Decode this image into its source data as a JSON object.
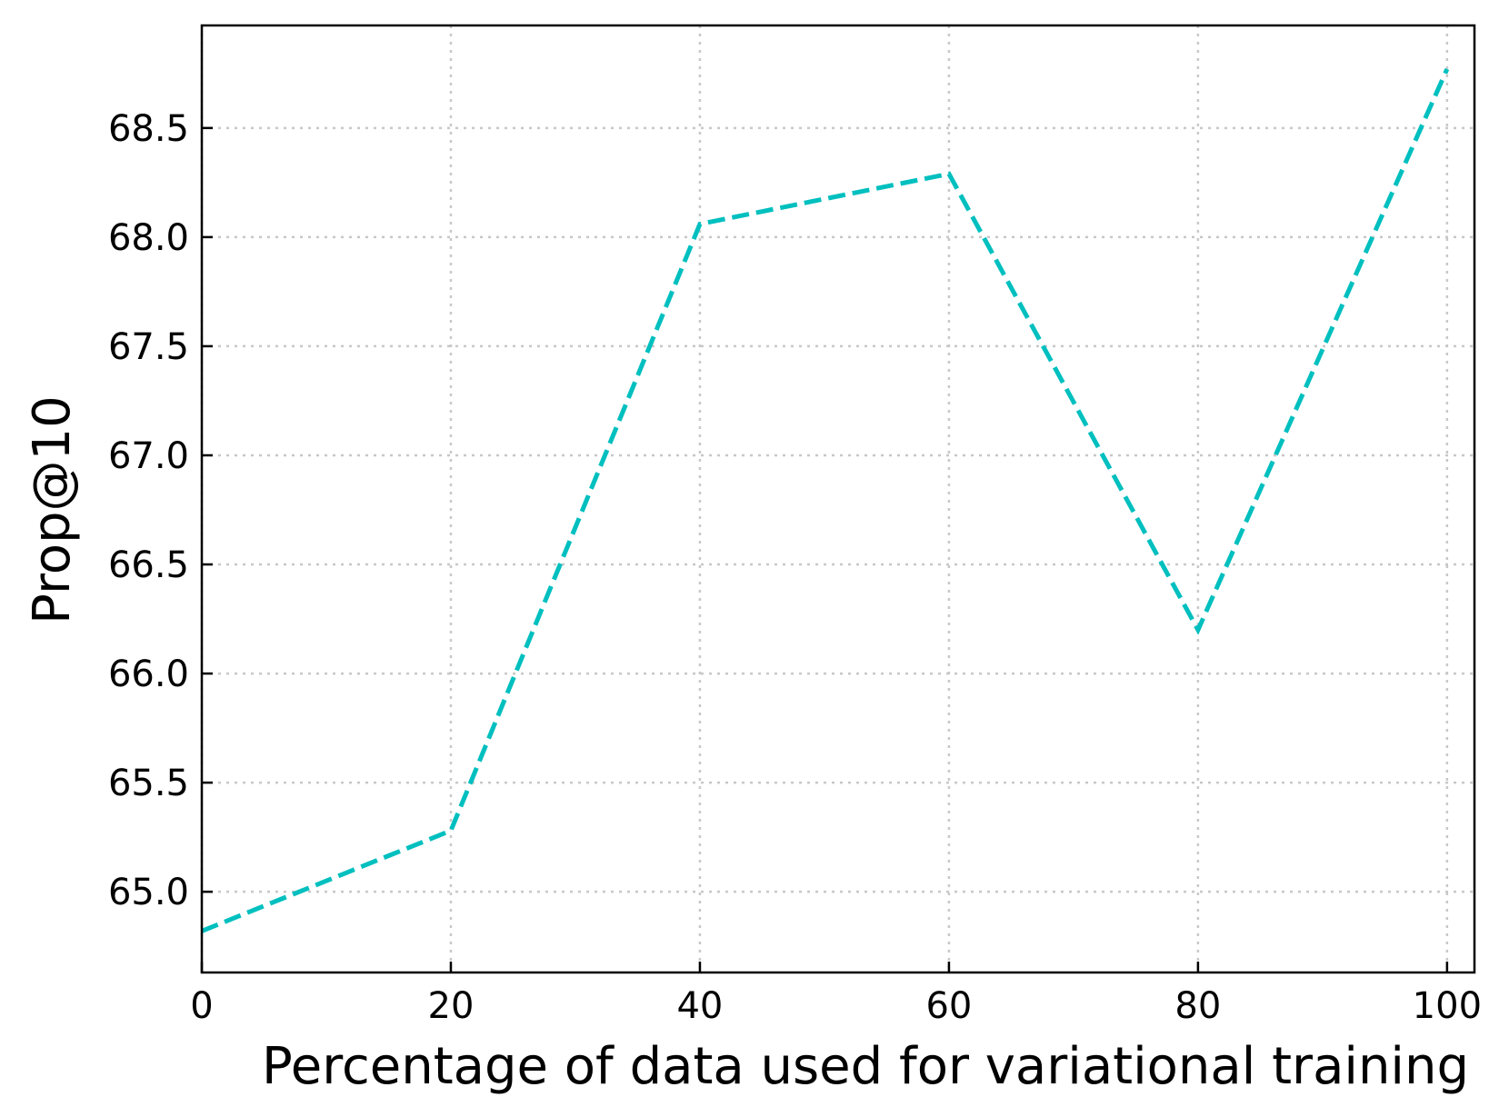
{
  "chart_data": {
    "type": "line",
    "xlabel": "Percentage of data used for variational training",
    "ylabel": "Prop@10",
    "xlim": [
      0,
      102.2
    ],
    "ylim": [
      64.63,
      68.97
    ],
    "xticks": [
      0,
      20,
      40,
      60,
      80,
      100
    ],
    "xtick_labels": [
      "0",
      "20",
      "40",
      "60",
      "80",
      "100"
    ],
    "yticks": [
      65.0,
      65.5,
      66.0,
      66.5,
      67.0,
      67.5,
      68.0,
      68.5
    ],
    "ytick_labels": [
      "65.0",
      "65.5",
      "66.0",
      "66.5",
      "67.0",
      "67.5",
      "68.0",
      "68.5"
    ],
    "grid": true,
    "series": [
      {
        "x": [
          0,
          20,
          40,
          60,
          80,
          100
        ],
        "y": [
          64.82,
          65.28,
          68.06,
          68.29,
          66.2,
          68.77
        ],
        "color": "#00bfbf",
        "linestyle": "dashed"
      }
    ]
  }
}
